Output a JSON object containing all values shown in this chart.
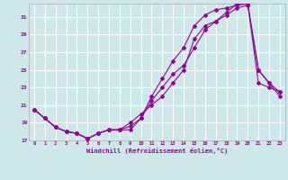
{
  "xlabel": "Windchill (Refroidissement éolien,°C)",
  "bg_color": "#cce8e8",
  "grid_color": "#ffffff",
  "line_color": "#990099",
  "xlim": [
    -0.5,
    23.5
  ],
  "ylim": [
    17,
    32.5
  ],
  "xticks": [
    0,
    1,
    2,
    3,
    4,
    5,
    6,
    7,
    8,
    9,
    10,
    11,
    12,
    13,
    14,
    15,
    16,
    17,
    18,
    19,
    20,
    21,
    22,
    23
  ],
  "yticks": [
    17,
    19,
    21,
    23,
    25,
    27,
    29,
    31
  ],
  "line1_x": [
    0,
    1,
    2,
    3,
    4,
    5,
    6,
    7,
    8,
    9,
    10,
    11,
    12,
    13,
    14,
    15,
    16,
    17,
    18,
    19,
    20,
    21,
    22,
    23
  ],
  "line1_y": [
    20.5,
    19.5,
    18.5,
    18.0,
    17.8,
    17.2,
    17.8,
    18.2,
    18.2,
    18.2,
    19.5,
    21.5,
    23.0,
    24.5,
    25.5,
    27.5,
    29.5,
    30.5,
    31.2,
    32.0,
    32.3,
    25.0,
    23.5,
    22.5
  ],
  "line2_x": [
    0,
    1,
    2,
    3,
    4,
    5,
    6,
    7,
    8,
    9,
    10,
    11,
    12,
    13,
    14,
    15,
    16,
    17,
    18,
    19,
    20,
    21,
    22,
    23
  ],
  "line2_y": [
    20.5,
    19.5,
    18.5,
    18.0,
    17.8,
    17.2,
    17.8,
    18.2,
    18.2,
    18.6,
    19.5,
    22.0,
    24.0,
    26.0,
    27.5,
    30.0,
    31.2,
    31.8,
    32.0,
    32.3,
    32.5,
    23.5,
    23.0,
    22.5
  ],
  "line3_x": [
    0,
    1,
    2,
    3,
    4,
    5,
    6,
    7,
    8,
    9,
    10,
    11,
    12,
    13,
    14,
    15,
    16,
    17,
    18,
    19,
    20,
    21,
    22,
    23
  ],
  "line3_y": [
    20.5,
    19.5,
    18.5,
    18.0,
    17.8,
    17.2,
    17.8,
    18.2,
    18.2,
    19.0,
    20.0,
    21.0,
    22.0,
    23.5,
    25.0,
    28.5,
    30.0,
    30.5,
    31.5,
    32.5,
    32.5,
    25.0,
    23.5,
    22.0
  ]
}
